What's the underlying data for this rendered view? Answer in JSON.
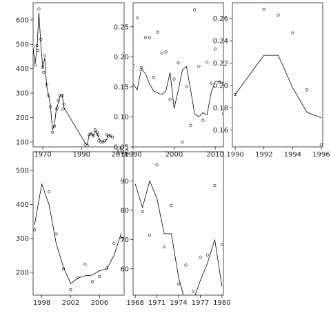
{
  "chart_data": [
    {
      "type": "line",
      "xlim": [
        1965,
        2012
      ],
      "ylim": [
        80,
        670
      ],
      "xticks": [
        1970,
        1990,
        2010
      ],
      "yticks": [
        100,
        200,
        300,
        400,
        500,
        600
      ],
      "series": [
        {
          "kind": "points",
          "x": [
            1965,
            1966,
            1967,
            1967.5,
            1968,
            1969,
            1970,
            1970.5,
            1971,
            1972,
            1973,
            1974,
            1975,
            1976,
            1977,
            1977.5,
            1978,
            1979,
            1980,
            1980.5,
            1981,
            1992,
            1993,
            1994,
            1995,
            1996,
            1997,
            1998,
            1998.5,
            1999,
            2000,
            2001,
            2002,
            2003,
            2004,
            2005,
            2006
          ],
          "y": [
            490,
            415,
            495,
            475,
            645,
            520,
            405,
            385,
            455,
            335,
            290,
            245,
            140,
            165,
            235,
            240,
            270,
            290,
            290,
            235,
            255,
            90,
            85,
            130,
            135,
            125,
            150,
            140,
            130,
            105,
            100,
            100,
            105,
            130,
            125,
            125,
            120
          ]
        },
        {
          "kind": "line",
          "x": [
            1965,
            1966,
            1967,
            1968,
            1969,
            1970,
            1971,
            1972,
            1973,
            1974,
            1975,
            1976,
            1977,
            1978,
            1979,
            1980,
            1981,
            1992,
            1993,
            1994,
            1995,
            1996,
            1997,
            1998,
            1999,
            2000,
            2001,
            2002,
            2003,
            2004,
            2005,
            2006
          ],
          "y": [
            485,
            420,
            480,
            630,
            500,
            405,
            445,
            330,
            290,
            245,
            150,
            170,
            235,
            260,
            290,
            295,
            240,
            95,
            90,
            130,
            135,
            125,
            145,
            135,
            115,
            105,
            100,
            100,
            110,
            130,
            125,
            120
          ]
        }
      ]
    },
    {
      "type": "line",
      "xlim": [
        1990,
        2012
      ],
      "ylim": [
        0.05,
        0.29
      ],
      "xticks": [
        1990,
        2000,
        2010
      ],
      "yticks": [
        0.05,
        0.1,
        0.15,
        0.2,
        0.25
      ],
      "series": [
        {
          "kind": "points",
          "x": [
            1990,
            1991,
            1992,
            1993,
            1994,
            1995,
            1996,
            1997,
            1998,
            1999,
            2000,
            2001,
            2002,
            2003,
            2004,
            2005,
            2006,
            2007,
            2008,
            2009,
            2010,
            2011,
            2012
          ],
          "y": [
            0.185,
            0.265,
            0.182,
            0.232,
            0.232,
            0.166,
            0.241,
            0.206,
            0.208,
            0.129,
            0.163,
            0.19,
            0.058,
            0.15,
            0.086,
            0.278,
            0.184,
            0.094,
            0.191,
            0.156,
            0.213,
            0.158,
            0.105
          ]
        },
        {
          "kind": "line",
          "x": [
            1990,
            1991,
            1992,
            1993,
            1994,
            1995,
            1996,
            1997,
            1998,
            1999,
            2000,
            2001,
            2002,
            2003,
            2004,
            2005,
            2006,
            2007,
            2008,
            2009,
            2010,
            2011,
            2012
          ],
          "y": [
            0.155,
            0.145,
            0.18,
            0.172,
            0.155,
            0.143,
            0.14,
            0.137,
            0.143,
            0.174,
            0.114,
            0.144,
            0.178,
            0.184,
            0.145,
            0.105,
            0.1,
            0.107,
            0.103,
            0.14,
            0.159,
            0.159,
            0.157
          ]
        }
      ]
    },
    {
      "type": "line",
      "xlim": [
        1989.8,
        1996.1
      ],
      "ylim": [
        0.145,
        0.274
      ],
      "xticks": [
        1990,
        1992,
        1994,
        1996
      ],
      "yticks": [
        0.16,
        0.18,
        0.2,
        0.22,
        0.24,
        0.26
      ],
      "series": [
        {
          "kind": "points",
          "x": [
            1990,
            1992,
            1993,
            1994,
            1995,
            1996
          ],
          "y": [
            0.192,
            0.268,
            0.263,
            0.247,
            0.196,
            0.147
          ]
        },
        {
          "kind": "line",
          "x": [
            1990,
            1992,
            1993,
            1994,
            1995,
            1996
          ],
          "y": [
            0.192,
            0.227,
            0.227,
            0.198,
            0.176,
            0.171
          ]
        }
      ]
    },
    {
      "type": "line",
      "xlim": [
        1996.8,
        2009.4
      ],
      "ylim": [
        133,
        555
      ],
      "xticks": [
        1998,
        2002,
        2006
      ],
      "yticks": [
        200,
        300,
        400,
        500
      ],
      "series": [
        {
          "kind": "points",
          "x": [
            1997,
            1998,
            1999,
            2000,
            2001,
            2002,
            2003,
            2004,
            2005,
            2006,
            2007,
            2008,
            2009
          ],
          "y": [
            325,
            555,
            437,
            313,
            211,
            149,
            185,
            224,
            173,
            188,
            213,
            286,
            302
          ]
        },
        {
          "kind": "line",
          "x": [
            1997,
            1998,
            1999,
            2000,
            2001,
            2002,
            2003,
            2004,
            2005,
            2006,
            2007,
            2008,
            2009
          ],
          "y": [
            340,
            460,
            400,
            285,
            215,
            167,
            183,
            190,
            192,
            205,
            210,
            250,
            315
          ]
        }
      ]
    },
    {
      "type": "line",
      "xlim": [
        1967.7,
        1980.2
      ],
      "ylim": [
        51,
        100
      ],
      "xticks": [
        1968,
        1971,
        1974,
        1977,
        1980
      ],
      "yticks": [
        60,
        70,
        80,
        90,
        100
      ],
      "series": [
        {
          "kind": "points",
          "x": [
            1968,
            1969,
            1970,
            1971,
            1972,
            1973,
            1974,
            1975,
            1976,
            1977,
            1978,
            1979,
            1980
          ],
          "y": [
            100,
            79.5,
            71.5,
            95.5,
            67.5,
            81.7,
            54.8,
            61.3,
            52.3,
            64,
            64.7,
            88.4,
            68.3
          ]
        },
        {
          "kind": "line",
          "x": [
            1968,
            1969,
            1970,
            1971,
            1972,
            1973,
            1974,
            1975,
            1976,
            1977,
            1978,
            1979,
            1980
          ],
          "y": [
            89,
            81,
            90,
            84,
            72,
            72,
            57,
            48,
            49,
            56,
            62,
            70,
            54
          ]
        }
      ]
    }
  ]
}
